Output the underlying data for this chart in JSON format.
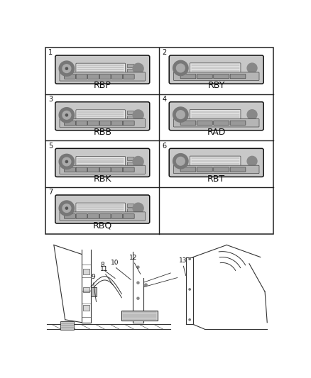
{
  "bg_color": "#f0f0f0",
  "grid_line_color": "#222222",
  "cells": [
    {
      "row": 0,
      "col": 0,
      "number": "1",
      "label": "RBP",
      "style": "rbp"
    },
    {
      "row": 0,
      "col": 1,
      "number": "2",
      "label": "RBY",
      "style": "rby"
    },
    {
      "row": 1,
      "col": 0,
      "number": "3",
      "label": "RBB",
      "style": "rbb"
    },
    {
      "row": 1,
      "col": 1,
      "number": "4",
      "label": "RAD",
      "style": "rad"
    },
    {
      "row": 2,
      "col": 0,
      "number": "5",
      "label": "RBK",
      "style": "rbk"
    },
    {
      "row": 2,
      "col": 1,
      "number": "6",
      "label": "RBT",
      "style": "rbt"
    },
    {
      "row": 3,
      "col": 0,
      "number": "7",
      "label": "RBQ",
      "style": "rbq"
    },
    {
      "row": 3,
      "col": 1,
      "number": "",
      "label": "",
      "style": "empty"
    }
  ],
  "label_fontsize": 9,
  "number_fontsize": 7
}
